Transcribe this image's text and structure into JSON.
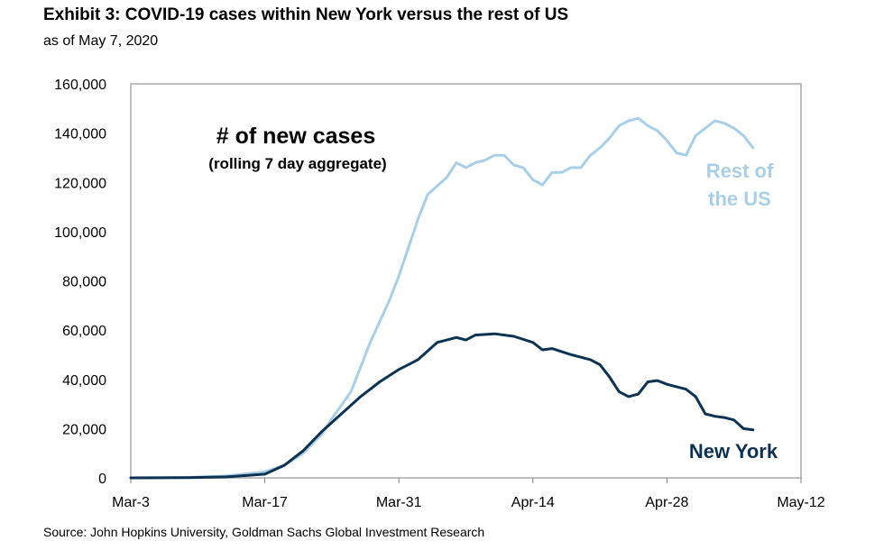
{
  "title": "Exhibit 3: COVID-19 cases within New York versus the rest of US",
  "subtitle": "as of May 7, 2020",
  "source": "Source: John Hopkins University, Goldman Sachs Global Investment Research",
  "colors": {
    "rest_of_us": "#a9cfe8",
    "new_york": "#0d3252",
    "frame": "#bfbfbf"
  },
  "chart_data": {
    "type": "line",
    "annotation_main": "# of new cases",
    "annotation_sub": "(rolling 7 day aggregate)",
    "ylim": [
      0,
      160000
    ],
    "yticks": [
      0,
      20000,
      40000,
      60000,
      80000,
      100000,
      120000,
      140000,
      160000
    ],
    "ytick_labels": [
      "0",
      "20,000",
      "40,000",
      "60,000",
      "80,000",
      "100,000",
      "120,000",
      "140,000",
      "160,000"
    ],
    "xlim": [
      "2020-03-03",
      "2020-05-12"
    ],
    "xticks": [
      "2020-03-03",
      "2020-03-17",
      "2020-03-31",
      "2020-04-14",
      "2020-04-28",
      "2020-05-12"
    ],
    "xtick_labels": [
      "Mar-3",
      "Mar-17",
      "Mar-31",
      "Apr-14",
      "Apr-28",
      "May-12"
    ],
    "grid": false,
    "series": [
      {
        "name": "Rest of the US",
        "label_lines": [
          "Rest of",
          "the US"
        ],
        "color": "#a9cfe8",
        "points": [
          [
            "2020-03-03",
            0
          ],
          [
            "2020-03-09",
            200
          ],
          [
            "2020-03-13",
            800
          ],
          [
            "2020-03-17",
            2500
          ],
          [
            "2020-03-19",
            5000
          ],
          [
            "2020-03-21",
            10000
          ],
          [
            "2020-03-23",
            18000
          ],
          [
            "2020-03-24",
            24000
          ],
          [
            "2020-03-26",
            35000
          ],
          [
            "2020-03-28",
            55000
          ],
          [
            "2020-03-30",
            72000
          ],
          [
            "2020-03-31",
            82000
          ],
          [
            "2020-04-02",
            105000
          ],
          [
            "2020-04-03",
            115000
          ],
          [
            "2020-04-05",
            122000
          ],
          [
            "2020-04-06",
            128000
          ],
          [
            "2020-04-07",
            126000
          ],
          [
            "2020-04-08",
            128000
          ],
          [
            "2020-04-09",
            129000
          ],
          [
            "2020-04-10",
            131000
          ],
          [
            "2020-04-11",
            131000
          ],
          [
            "2020-04-12",
            127000
          ],
          [
            "2020-04-13",
            126000
          ],
          [
            "2020-04-14",
            121000
          ],
          [
            "2020-04-15",
            119000
          ],
          [
            "2020-04-16",
            124000
          ],
          [
            "2020-04-17",
            124000
          ],
          [
            "2020-04-18",
            126000
          ],
          [
            "2020-04-19",
            126000
          ],
          [
            "2020-04-20",
            131000
          ],
          [
            "2020-04-21",
            134000
          ],
          [
            "2020-04-22",
            138000
          ],
          [
            "2020-04-23",
            143000
          ],
          [
            "2020-04-24",
            145000
          ],
          [
            "2020-04-25",
            146000
          ],
          [
            "2020-04-26",
            143000
          ],
          [
            "2020-04-27",
            141000
          ],
          [
            "2020-04-28",
            137000
          ],
          [
            "2020-04-29",
            132000
          ],
          [
            "2020-04-30",
            131000
          ],
          [
            "2020-05-01",
            139000
          ],
          [
            "2020-05-02",
            142000
          ],
          [
            "2020-05-03",
            145000
          ],
          [
            "2020-05-04",
            144000
          ],
          [
            "2020-05-05",
            142000
          ],
          [
            "2020-05-06",
            139000
          ],
          [
            "2020-05-07",
            134000
          ]
        ]
      },
      {
        "name": "New York",
        "label_lines": [
          "New York"
        ],
        "color": "#0d3252",
        "points": [
          [
            "2020-03-03",
            0
          ],
          [
            "2020-03-09",
            100
          ],
          [
            "2020-03-13",
            400
          ],
          [
            "2020-03-17",
            1500
          ],
          [
            "2020-03-19",
            5000
          ],
          [
            "2020-03-21",
            11000
          ],
          [
            "2020-03-23",
            19000
          ],
          [
            "2020-03-25",
            26000
          ],
          [
            "2020-03-27",
            33000
          ],
          [
            "2020-03-29",
            39000
          ],
          [
            "2020-03-31",
            44000
          ],
          [
            "2020-04-02",
            48000
          ],
          [
            "2020-04-04",
            55000
          ],
          [
            "2020-04-06",
            57000
          ],
          [
            "2020-04-07",
            56000
          ],
          [
            "2020-04-08",
            58000
          ],
          [
            "2020-04-10",
            58500
          ],
          [
            "2020-04-12",
            57500
          ],
          [
            "2020-04-14",
            55000
          ],
          [
            "2020-04-15",
            52000
          ],
          [
            "2020-04-16",
            52500
          ],
          [
            "2020-04-18",
            50000
          ],
          [
            "2020-04-20",
            48000
          ],
          [
            "2020-04-21",
            46000
          ],
          [
            "2020-04-22",
            41000
          ],
          [
            "2020-04-23",
            35000
          ],
          [
            "2020-04-24",
            33000
          ],
          [
            "2020-04-25",
            34000
          ],
          [
            "2020-04-26",
            39000
          ],
          [
            "2020-04-27",
            39500
          ],
          [
            "2020-04-28",
            38000
          ],
          [
            "2020-04-29",
            37000
          ],
          [
            "2020-04-30",
            36000
          ],
          [
            "2020-05-01",
            33000
          ],
          [
            "2020-05-02",
            26000
          ],
          [
            "2020-05-03",
            25000
          ],
          [
            "2020-05-04",
            24500
          ],
          [
            "2020-05-05",
            23500
          ],
          [
            "2020-05-06",
            20000
          ],
          [
            "2020-05-07",
            19500
          ]
        ]
      }
    ]
  }
}
